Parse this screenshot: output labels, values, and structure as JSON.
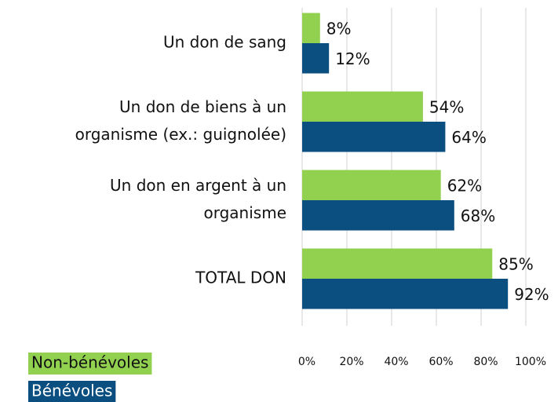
{
  "chart_data": {
    "type": "bar",
    "orientation": "horizontal",
    "categories": [
      [
        "Un don de sang"
      ],
      [
        "Un don de biens à un",
        "organisme (ex.: guignolée)"
      ],
      [
        "Un don en argent à un",
        "organisme"
      ],
      [
        "TOTAL DON"
      ]
    ],
    "series": [
      {
        "name": "Non-bénévoles",
        "color": "#92d050",
        "values": [
          8,
          54,
          62,
          85
        ],
        "value_labels": [
          "8%",
          "54%",
          "62%",
          "85%"
        ]
      },
      {
        "name": "Bénévoles",
        "color": "#0b4f80",
        "values": [
          12,
          64,
          68,
          92
        ],
        "value_labels": [
          "12%",
          "64%",
          "68%",
          "92%"
        ]
      }
    ],
    "xlim": [
      0,
      100
    ],
    "xticks": [
      {
        "value": 0,
        "label": "0%"
      },
      {
        "value": 20,
        "label": "20%"
      },
      {
        "value": 40,
        "label": "40%"
      },
      {
        "value": 60,
        "label": "60%"
      },
      {
        "value": 80,
        "label": "80%"
      },
      {
        "value": 100,
        "label": "100%"
      }
    ],
    "grid": true
  }
}
